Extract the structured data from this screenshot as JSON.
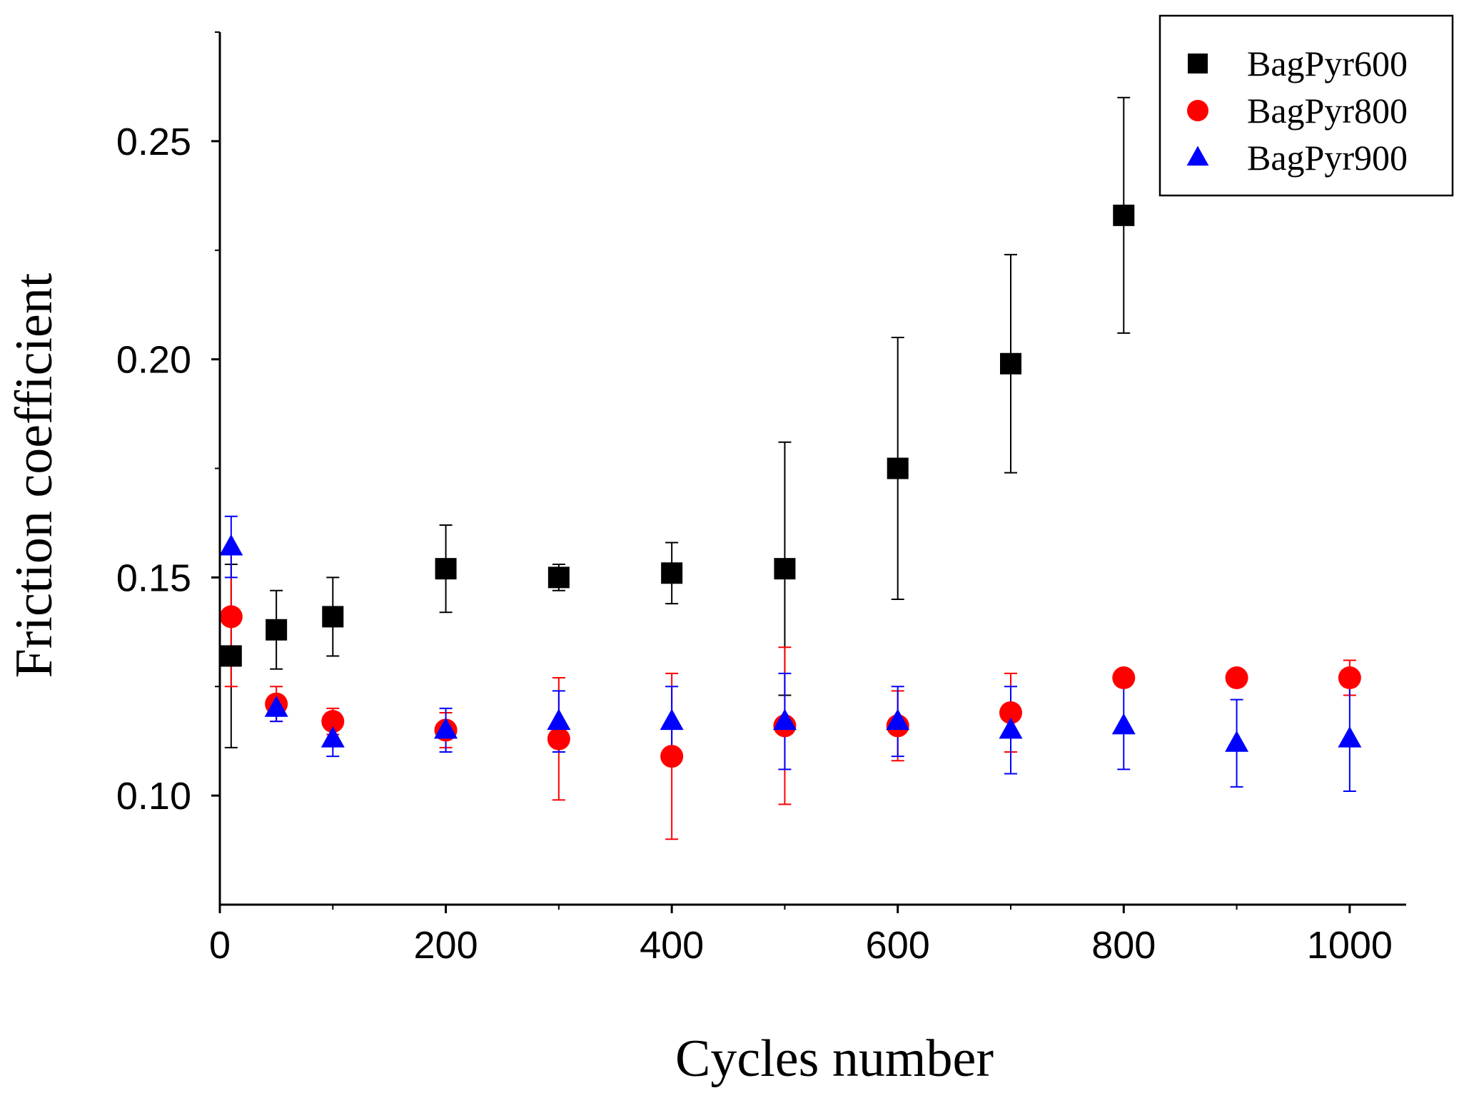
{
  "chart_data": {
    "type": "scatter",
    "title": "",
    "xlabel": "Cycles number",
    "ylabel": "Friction coefficient",
    "xlim": [
      0,
      1050
    ],
    "ylim": [
      0.075,
      0.275
    ],
    "x_ticks": [
      0,
      200,
      400,
      600,
      800,
      1000
    ],
    "x_tick_labels": [
      "0",
      "200",
      "400",
      "600",
      "800",
      "1000"
    ],
    "y_ticks": [
      0.1,
      0.15,
      0.2,
      0.25
    ],
    "y_tick_labels": [
      "0.10",
      "0.15",
      "0.20",
      "0.25"
    ],
    "grid": false,
    "legend_position": "top-right",
    "series": [
      {
        "name": "BagPyr600",
        "marker": "square",
        "color": "#000000",
        "points": [
          {
            "x": 10,
            "y": 0.132,
            "err": 0.021
          },
          {
            "x": 50,
            "y": 0.138,
            "err": 0.009
          },
          {
            "x": 100,
            "y": 0.141,
            "err": 0.009
          },
          {
            "x": 200,
            "y": 0.152,
            "err": 0.01
          },
          {
            "x": 300,
            "y": 0.15,
            "err": 0.003
          },
          {
            "x": 400,
            "y": 0.151,
            "err": 0.007
          },
          {
            "x": 500,
            "y": 0.152,
            "err": 0.029
          },
          {
            "x": 600,
            "y": 0.175,
            "err": 0.03
          },
          {
            "x": 700,
            "y": 0.199,
            "err": 0.025
          },
          {
            "x": 800,
            "y": 0.233,
            "err": 0.027
          }
        ]
      },
      {
        "name": "BagPyr800",
        "marker": "circle",
        "color": "#ff0000",
        "points": [
          {
            "x": 10,
            "y": 0.141,
            "err": 0.016
          },
          {
            "x": 50,
            "y": 0.121,
            "err": 0.004
          },
          {
            "x": 100,
            "y": 0.117,
            "err": 0.003
          },
          {
            "x": 200,
            "y": 0.115,
            "err": 0.004
          },
          {
            "x": 300,
            "y": 0.113,
            "err": 0.014
          },
          {
            "x": 400,
            "y": 0.109,
            "err": 0.019
          },
          {
            "x": 500,
            "y": 0.116,
            "err": 0.018
          },
          {
            "x": 600,
            "y": 0.116,
            "err": 0.008
          },
          {
            "x": 700,
            "y": 0.119,
            "err": 0.009
          },
          {
            "x": 800,
            "y": 0.127,
            "err": 0.001
          },
          {
            "x": 900,
            "y": 0.127,
            "err": 0.0
          },
          {
            "x": 1000,
            "y": 0.127,
            "err": 0.004
          }
        ]
      },
      {
        "name": "BagPyr900",
        "marker": "triangle",
        "color": "#0000ff",
        "points": [
          {
            "x": 10,
            "y": 0.157,
            "err": 0.007
          },
          {
            "x": 50,
            "y": 0.12,
            "err": 0.003
          },
          {
            "x": 100,
            "y": 0.113,
            "err": 0.004
          },
          {
            "x": 200,
            "y": 0.115,
            "err": 0.005
          },
          {
            "x": 300,
            "y": 0.117,
            "err": 0.007
          },
          {
            "x": 400,
            "y": 0.117,
            "err": 0.008
          },
          {
            "x": 500,
            "y": 0.117,
            "err": 0.011
          },
          {
            "x": 600,
            "y": 0.117,
            "err": 0.008
          },
          {
            "x": 700,
            "y": 0.115,
            "err": 0.01
          },
          {
            "x": 800,
            "y": 0.116,
            "err": 0.01
          },
          {
            "x": 900,
            "y": 0.112,
            "err": 0.01
          },
          {
            "x": 1000,
            "y": 0.113,
            "err": 0.012
          }
        ]
      }
    ]
  }
}
